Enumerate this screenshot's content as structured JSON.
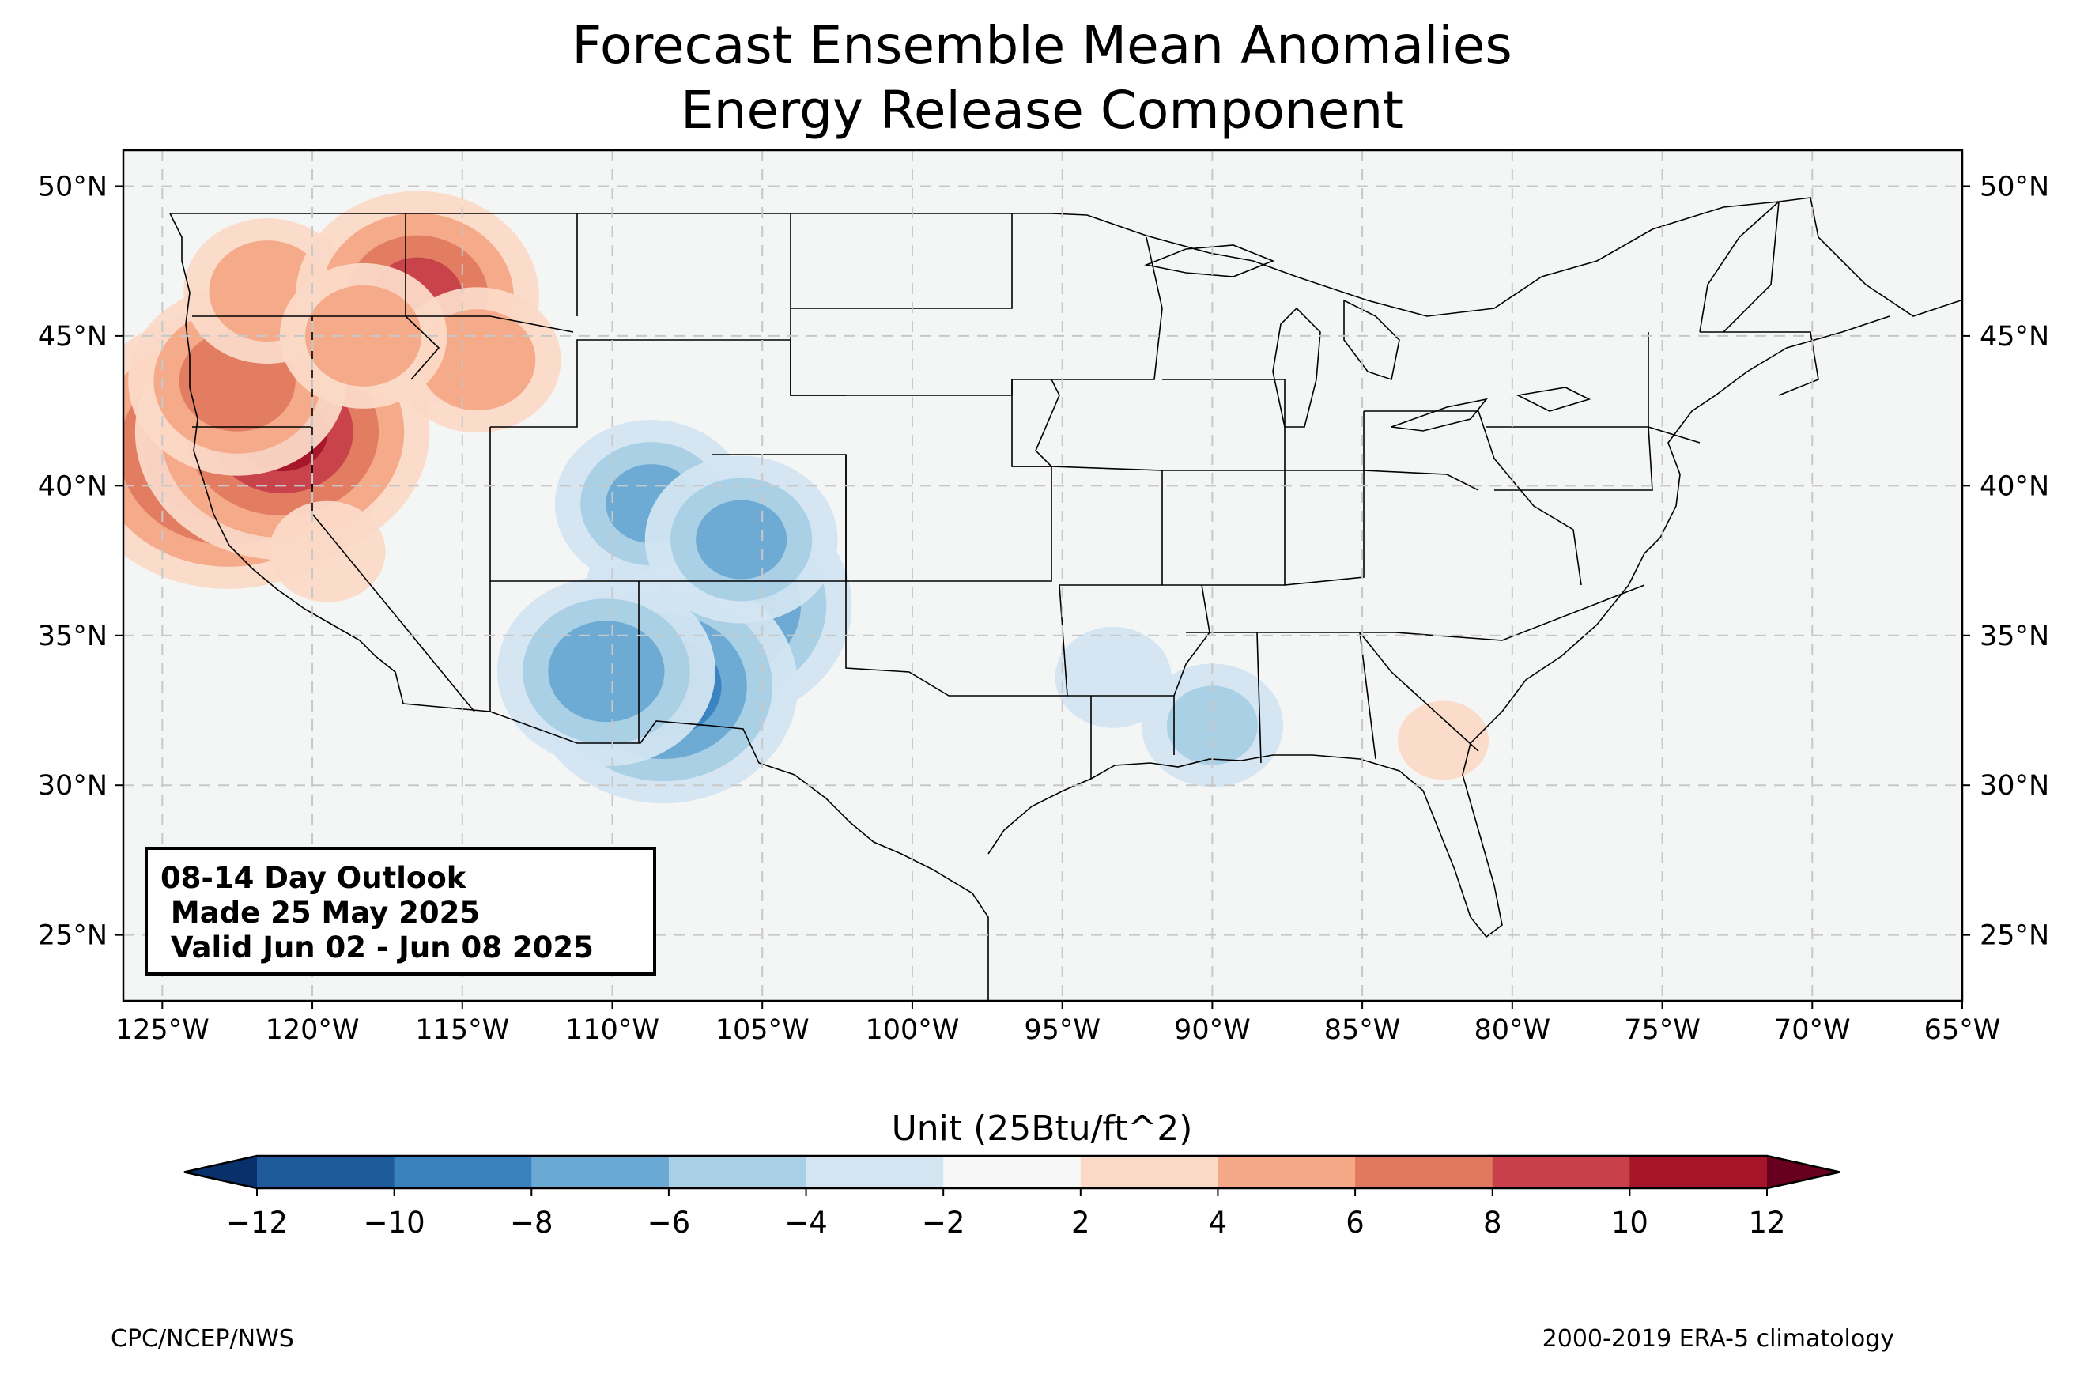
{
  "title": {
    "line1": "Forecast Ensemble Mean Anomalies",
    "line2": "Energy Release Component"
  },
  "info_box": {
    "line1": "08-14 Day Outlook",
    "line2": " Made 25 May 2025",
    "line3": " Valid Jun 02 - Jun 08 2025"
  },
  "axes": {
    "lon_ticks": [
      "125°W",
      "120°W",
      "115°W",
      "110°W",
      "105°W",
      "100°W",
      "95°W",
      "90°W",
      "85°W",
      "80°W",
      "75°W",
      "70°W",
      "65°W"
    ],
    "lat_ticks": [
      "50°N",
      "45°N",
      "40°N",
      "35°N",
      "30°N",
      "25°N"
    ],
    "lon_range": [
      -126.3,
      -65.0
    ],
    "lat_range": [
      22.8,
      51.2
    ],
    "grid": true
  },
  "colorbar": {
    "label": "Unit (25Btu/ft^2)",
    "ticks": [
      "−12",
      "−10",
      "−8",
      "−6",
      "−4",
      "−2",
      "2",
      "4",
      "6",
      "8",
      "10",
      "12"
    ],
    "levels": [
      -12,
      -10,
      -8,
      -6,
      -4,
      -2,
      2,
      4,
      6,
      8,
      10,
      12
    ],
    "colors": [
      "#08306b",
      "#1f5a9c",
      "#3a82bf",
      "#69a9d3",
      "#a8cfe5",
      "#d3e5f1",
      "#f7f7f7",
      "#fbd9c7",
      "#f4a886",
      "#e07a5f",
      "#c7404a",
      "#a51429",
      "#67001f"
    ],
    "extend": "both"
  },
  "footer": {
    "left": "CPC/NCEP/NWS",
    "right": "2000-2019 ERA-5 climatology"
  },
  "map": {
    "ocean_color": "#f4f6f6",
    "anomaly_regions": [
      {
        "lon": -122.8,
        "lat": 41.2,
        "value": 12
      },
      {
        "lon": -121.0,
        "lat": 41.8,
        "value": 11
      },
      {
        "lon": -122.5,
        "lat": 43.5,
        "value": 8
      },
      {
        "lon": -121.5,
        "lat": 46.5,
        "value": 6
      },
      {
        "lon": -116.5,
        "lat": 46.3,
        "value": 9
      },
      {
        "lon": -114.5,
        "lat": 44.2,
        "value": 6
      },
      {
        "lon": -118.3,
        "lat": 45.0,
        "value": 6
      },
      {
        "lon": -119.5,
        "lat": 37.8,
        "value": 4
      },
      {
        "lon": -106.5,
        "lat": 36.0,
        "value": -10
      },
      {
        "lon": -108.3,
        "lat": 33.3,
        "value": -10
      },
      {
        "lon": -110.2,
        "lat": 33.8,
        "value": -8
      },
      {
        "lon": -108.7,
        "lat": 39.4,
        "value": -7
      },
      {
        "lon": -105.7,
        "lat": 38.2,
        "value": -7
      },
      {
        "lon": -90.0,
        "lat": 32.0,
        "value": -5
      },
      {
        "lon": -93.3,
        "lat": 33.6,
        "value": -4
      },
      {
        "lon": -82.3,
        "lat": 31.5,
        "value": 3
      }
    ]
  }
}
